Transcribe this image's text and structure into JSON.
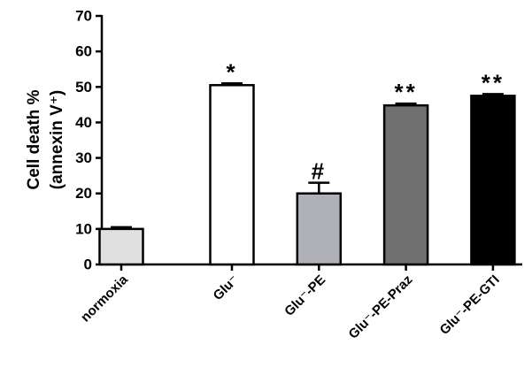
{
  "chart_data": {
    "type": "bar",
    "y_label_lines": [
      "Cell death %",
      "(annexin V⁺)"
    ],
    "categories": [
      "normoxia",
      "Glu⁻",
      "Glu⁻-PE",
      "Glu⁻-PE-Praz",
      "Glu⁻-PE-GTI"
    ],
    "values": [
      10,
      50.5,
      20,
      44.8,
      47.5
    ],
    "errors": [
      0.5,
      0.5,
      3,
      0.5,
      0.5
    ],
    "colors": [
      "#e0e0e0",
      "#ffffff",
      "#b0b0b8",
      "#707070",
      "#000000"
    ],
    "annotations": [
      null,
      "*",
      "#",
      "**",
      "**"
    ],
    "ylim": [
      0,
      70
    ],
    "yticks": [
      0,
      10,
      20,
      30,
      40,
      50,
      60,
      70
    ],
    "grid": false
  }
}
